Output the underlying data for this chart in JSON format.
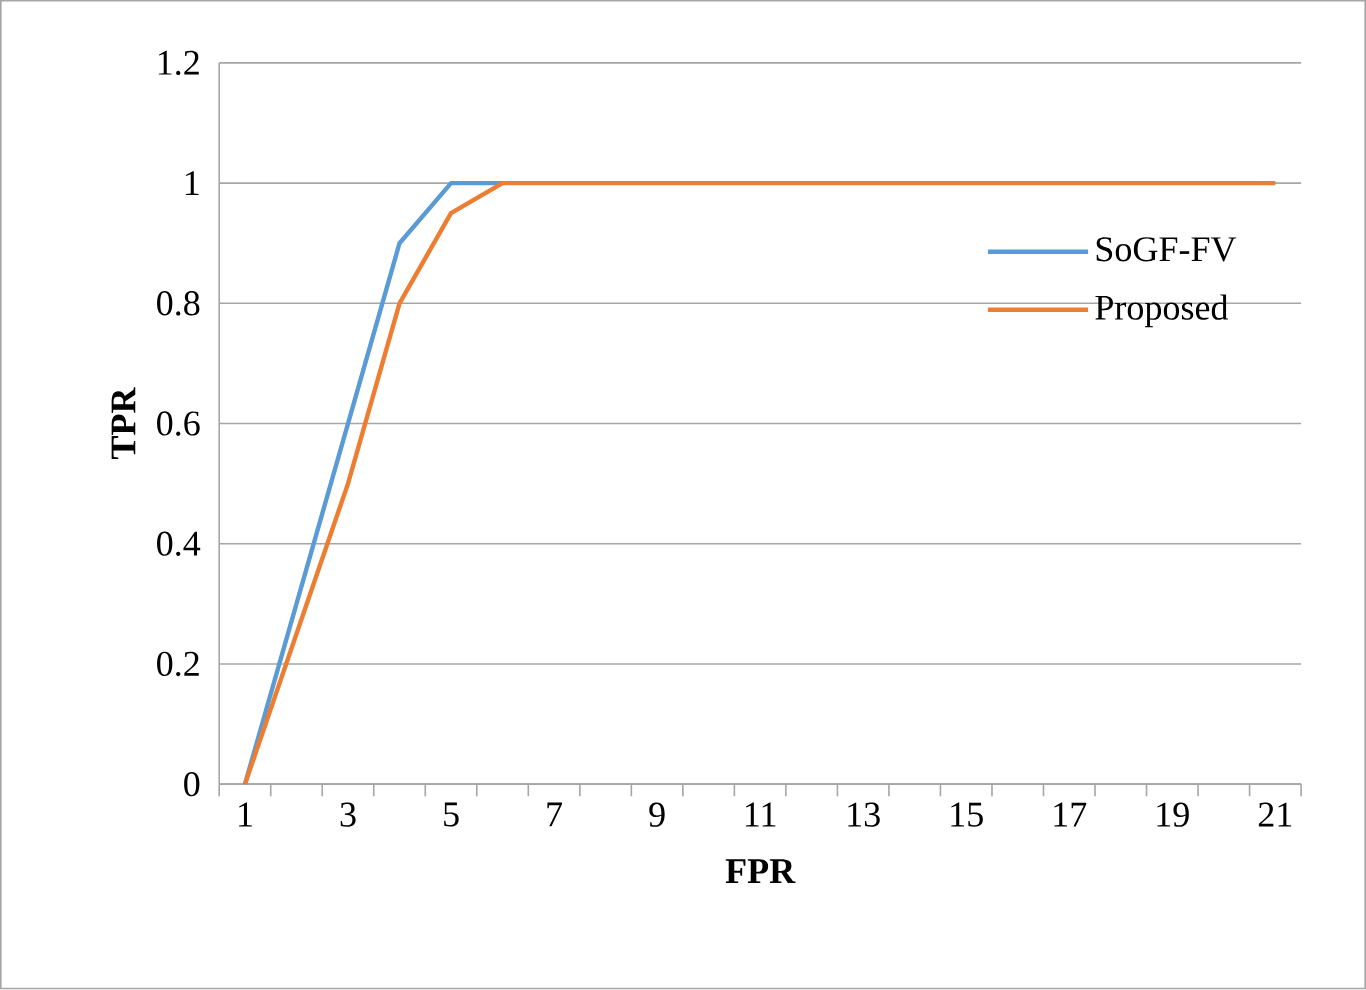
{
  "chart_data": {
    "type": "line",
    "xlabel": "FPR",
    "ylabel": "TPR",
    "categories": [
      "1",
      null,
      "3",
      null,
      "5",
      null,
      "7",
      null,
      "9",
      null,
      "11",
      null,
      "13",
      null,
      "15",
      null,
      "17",
      null,
      "19",
      null,
      "21"
    ],
    "series": [
      {
        "name": "SoGF-FV",
        "color": "#5b9bd5",
        "values": [
          0,
          0.3,
          0.6,
          0.9,
          1,
          1,
          null,
          null,
          null,
          null,
          null,
          null,
          null,
          null,
          null,
          null,
          null,
          null,
          null,
          null,
          null
        ]
      },
      {
        "name": "Proposed",
        "color": "#ed7d31",
        "values": [
          0,
          0.25,
          0.5,
          0.8,
          0.95,
          1,
          1,
          1,
          1,
          1,
          1,
          1,
          1,
          1,
          1,
          1,
          1,
          1,
          1,
          1,
          1
        ]
      }
    ],
    "ylim": [
      0,
      1.2
    ],
    "yticks": [
      0,
      0.2,
      0.4,
      0.6,
      0.8,
      1,
      1.2
    ],
    "grid": "y",
    "legend": "right",
    "marker": "none",
    "line_style": "solid"
  }
}
